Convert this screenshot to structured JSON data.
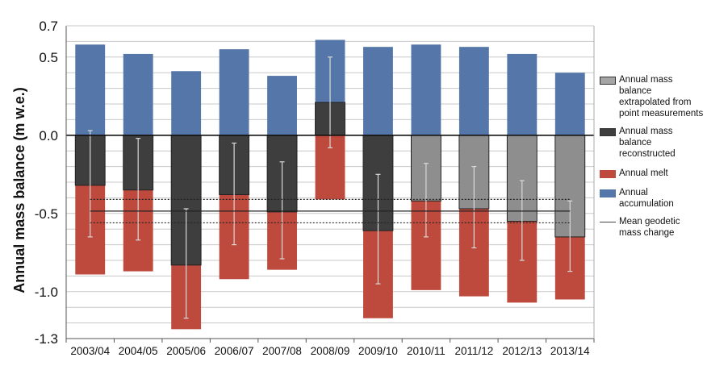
{
  "chart_data": {
    "type": "bar",
    "ylabel": "Annual mass balance (m w.e.)",
    "categories": [
      "2003/04",
      "2004/05",
      "2005/06",
      "2006/07",
      "2007/08",
      "2008/09",
      "2009/10",
      "2010/11",
      "2011/12",
      "2012/13",
      "2013/14"
    ],
    "ylim": [
      -1.3,
      0.7
    ],
    "yticks": [
      {
        "value": 0.7,
        "label": "0.7"
      },
      {
        "value": 0.5,
        "label": "0.5"
      },
      {
        "value": 0.0,
        "label": "0.0"
      },
      {
        "value": -0.5,
        "label": "-0.5"
      },
      {
        "value": -1.0,
        "label": "-1.0"
      },
      {
        "value": -1.3,
        "label": "-1.3"
      }
    ],
    "grid_step": 0.1,
    "grid": true,
    "legend_position": "right",
    "series": [
      {
        "name": "Annual accumulation",
        "color": "#5576a8",
        "values": [
          0.58,
          0.52,
          0.41,
          0.55,
          0.38,
          0.61,
          0.565,
          0.58,
          0.565,
          0.52,
          0.4
        ]
      },
      {
        "name": "Annual melt",
        "color": "#bd4a3c",
        "values": [
          -0.89,
          -0.87,
          -1.24,
          -0.92,
          -0.86,
          -0.41,
          -1.17,
          -0.99,
          -1.03,
          -1.07,
          -1.05
        ]
      },
      {
        "name": "Annual mass balance reconstructed",
        "color": "#3e3e3e",
        "values": [
          -0.32,
          -0.35,
          -0.83,
          -0.38,
          -0.49,
          0.21,
          -0.61,
          null,
          null,
          null,
          null
        ],
        "error_low": [
          -0.65,
          -0.67,
          -1.17,
          -0.7,
          -0.79,
          -0.08,
          -0.95,
          null,
          null,
          null,
          null
        ],
        "error_high": [
          0.03,
          -0.02,
          -0.47,
          -0.05,
          -0.17,
          0.5,
          -0.25,
          null,
          null,
          null,
          null
        ]
      },
      {
        "name": "Annual mass balance extrapolated from point measurements",
        "color": "#8e8e8e",
        "values": [
          null,
          null,
          null,
          null,
          null,
          null,
          null,
          -0.42,
          -0.47,
          -0.55,
          -0.65
        ],
        "error_low": [
          null,
          null,
          null,
          null,
          null,
          null,
          null,
          -0.65,
          -0.72,
          -0.8,
          -0.87
        ],
        "error_high": [
          null,
          null,
          null,
          null,
          null,
          null,
          null,
          -0.18,
          -0.2,
          -0.29,
          -0.42
        ]
      }
    ],
    "mean_geodetic_mass_change": {
      "name": "Mean geodetic mass change",
      "mean": -0.485,
      "lower": -0.56,
      "upper": -0.41
    }
  }
}
